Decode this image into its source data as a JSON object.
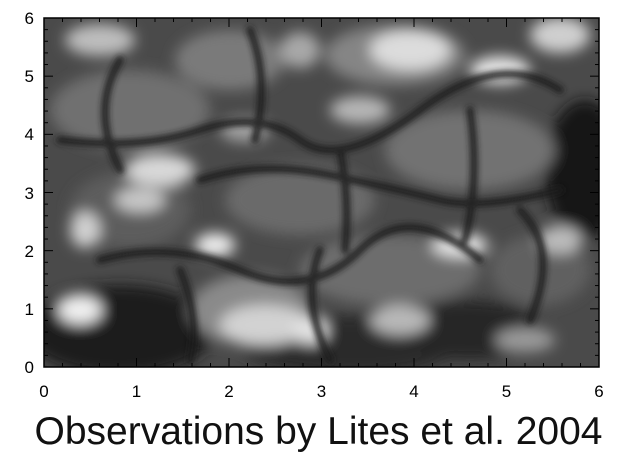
{
  "figure": {
    "caption": "Observations by Lites et al. 2004"
  },
  "axes": {
    "x_ticks": [
      "0",
      "1",
      "2",
      "3",
      "4",
      "5",
      "6"
    ],
    "y_ticks": [
      "0",
      "1",
      "2",
      "3",
      "4",
      "5",
      "6"
    ],
    "x_range": [
      0,
      6
    ],
    "y_range": [
      0,
      6
    ]
  },
  "image": {
    "colormap": "grayscale",
    "subject": "solar granulation intensity map"
  }
}
